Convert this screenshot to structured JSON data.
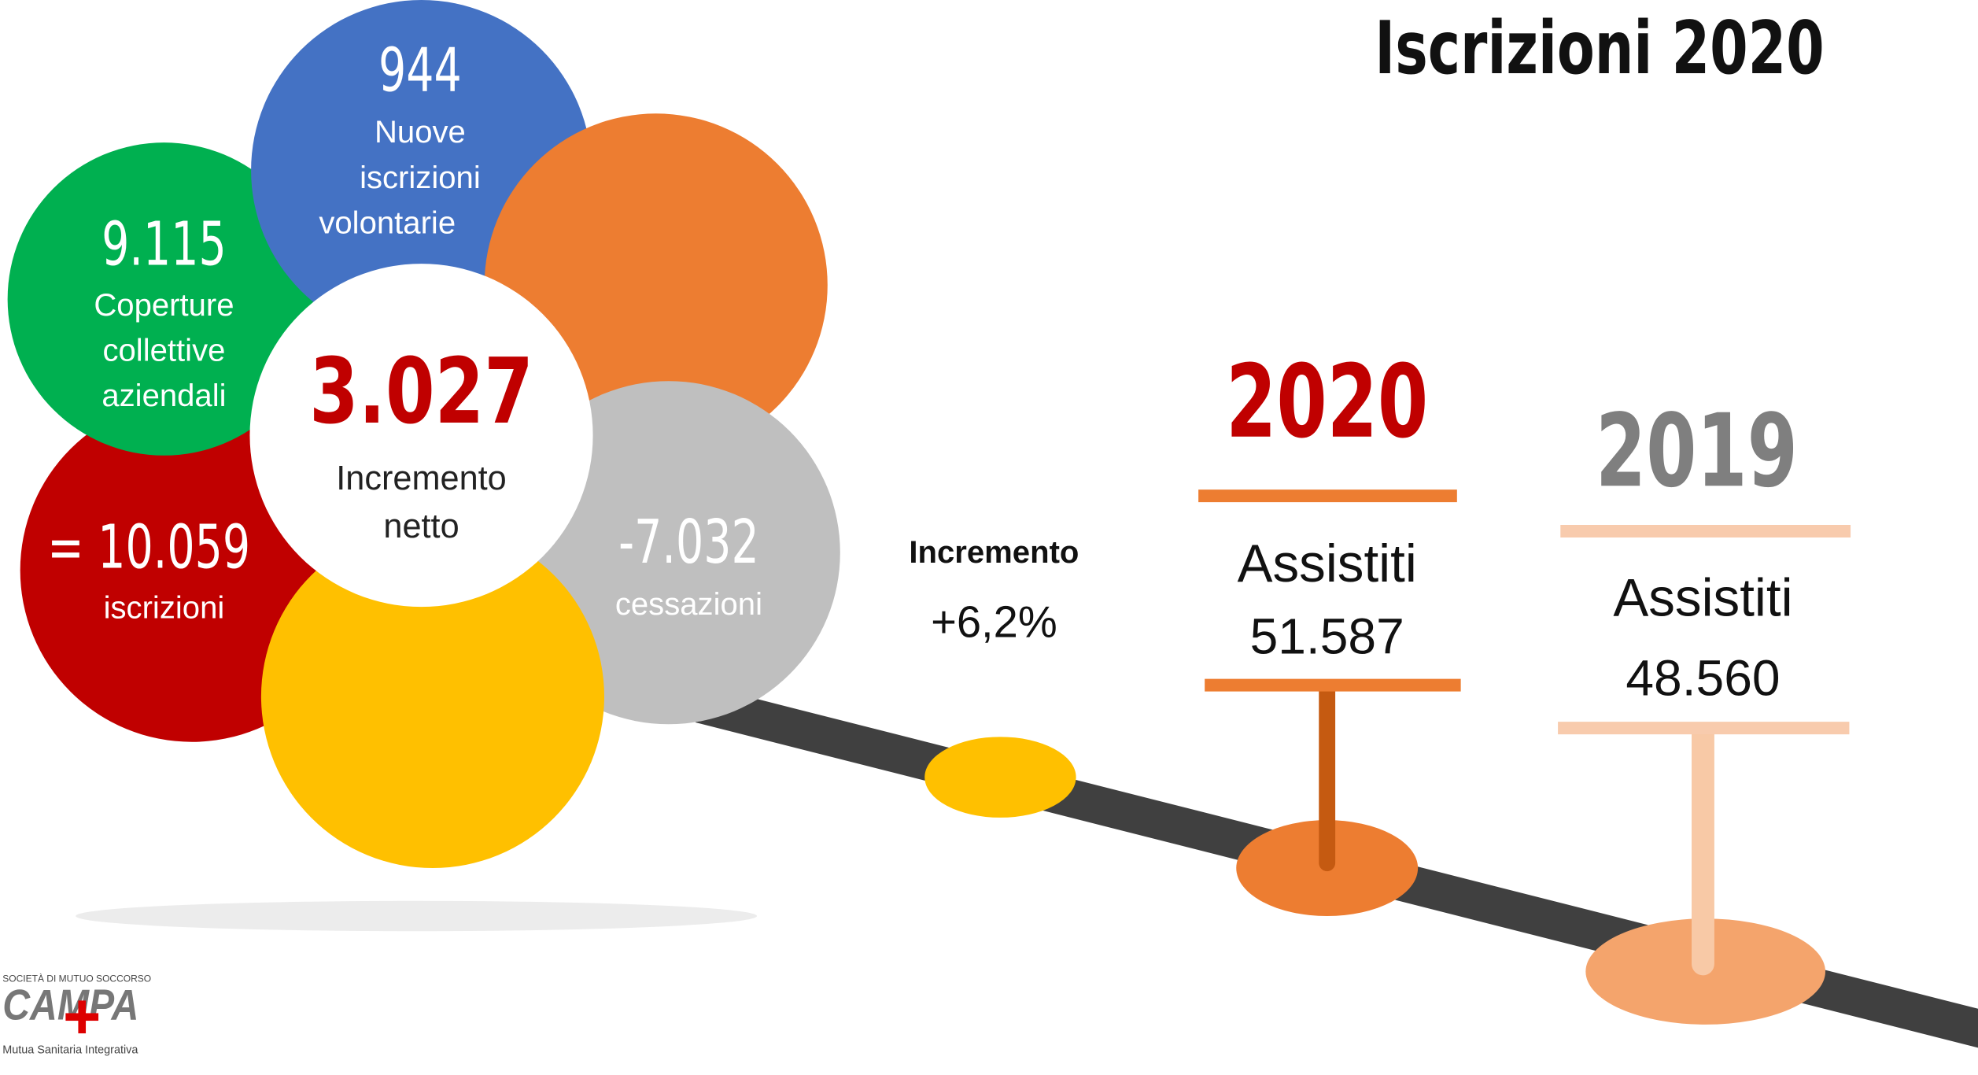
{
  "title": "Iscrizioni 2020",
  "flower": {
    "center": {
      "value": "3.027",
      "lines": [
        "Incremento",
        "netto"
      ]
    },
    "petals": [
      {
        "value": "944",
        "lines": [
          "Nuove",
          "iscrizioni",
          "volontarie"
        ]
      },
      {
        "value": "9.115",
        "lines": [
          "Coperture",
          "collettive",
          "aziendali"
        ]
      },
      {
        "value": "= 10.059",
        "lines": [
          "iscrizioni"
        ]
      },
      {
        "value": "-7.032",
        "lines": [
          "cessazioni"
        ]
      }
    ]
  },
  "increment": {
    "label": "Incremento",
    "value": "+6,2%"
  },
  "signs": [
    {
      "year": "2020",
      "label": "Assistiti",
      "value": "51.587"
    },
    {
      "year": "2019",
      "label": "Assistiti",
      "value": "48.560"
    }
  ],
  "logo": {
    "top": "SOCIETÀ DI MUTUO SOCCORSO",
    "name": "CAMPA",
    "bottom": "Mutua Sanitaria Integrativa"
  }
}
